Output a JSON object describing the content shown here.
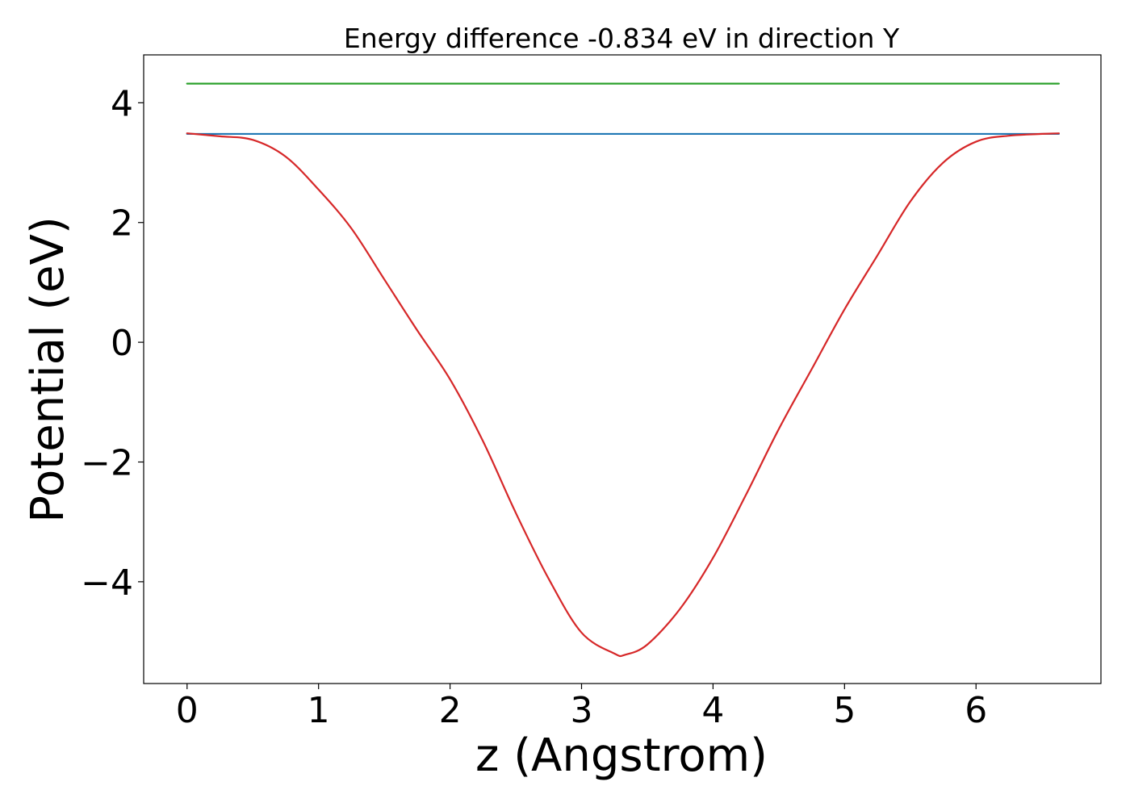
{
  "chart_data": {
    "type": "line",
    "title": "Energy difference -0.834 eV in direction Y",
    "xlabel": "z (Angstrom)",
    "ylabel": "Potential (eV)",
    "xlim": [
      -0.33,
      6.95
    ],
    "ylim": [
      -5.7,
      4.8
    ],
    "xticks": [
      0,
      1,
      2,
      3,
      4,
      5,
      6
    ],
    "xtick_labels": [
      "0",
      "1",
      "2",
      "3",
      "4",
      "5",
      "6"
    ],
    "yticks": [
      4,
      2,
      0,
      -2,
      -4
    ],
    "ytick_labels": [
      "4",
      "2",
      "0",
      "−2",
      "−4"
    ],
    "grid": false,
    "legend": "none",
    "series": [
      {
        "color": "#2ca02c",
        "x": [
          0,
          6.63
        ],
        "y": [
          4.32,
          4.32
        ]
      },
      {
        "color": "#1f77b4",
        "x": [
          0,
          6.63
        ],
        "y": [
          3.48,
          3.48
        ]
      },
      {
        "color": "#d62728",
        "x": [
          0,
          0.25,
          0.5,
          0.75,
          1.0,
          1.25,
          1.5,
          1.75,
          2.0,
          2.25,
          2.5,
          2.75,
          3.0,
          3.25,
          3.33,
          3.5,
          3.75,
          4.0,
          4.25,
          4.5,
          4.75,
          5.0,
          5.25,
          5.5,
          5.75,
          6.0,
          6.25,
          6.63
        ],
        "y": [
          3.49,
          3.44,
          3.38,
          3.1,
          2.55,
          1.9,
          1.05,
          0.2,
          -0.62,
          -1.65,
          -2.85,
          -3.95,
          -4.85,
          -5.2,
          -5.22,
          -5.05,
          -4.45,
          -3.6,
          -2.55,
          -1.45,
          -0.45,
          0.55,
          1.45,
          2.35,
          3.0,
          3.35,
          3.45,
          3.49
        ]
      }
    ]
  }
}
